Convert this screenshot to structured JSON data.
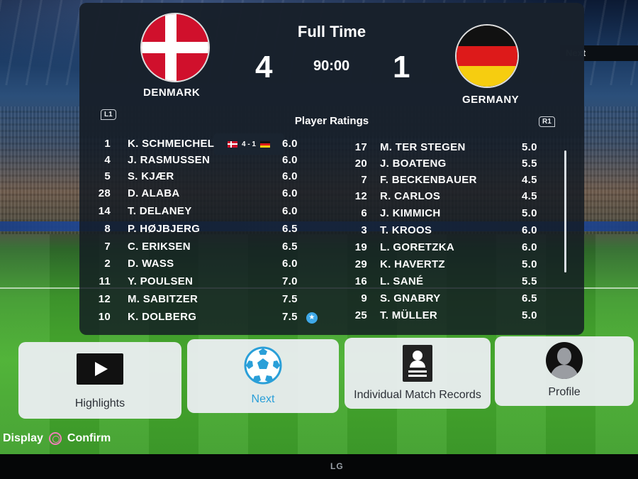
{
  "header": {
    "title": "Full Time",
    "clock": "90:00",
    "next_tag": "Next"
  },
  "home": {
    "team": "DENMARK",
    "score": "4"
  },
  "away": {
    "team": "GERMANY",
    "score": "1"
  },
  "mini_score": "4 - 1",
  "ratings": {
    "title": "Player Ratings",
    "l1": "L1",
    "r1": "R1",
    "home_players": [
      {
        "num": "1",
        "name": "K. SCHMEICHEL",
        "rating": "6.0"
      },
      {
        "num": "4",
        "name": "J. RASMUSSEN",
        "rating": "6.0"
      },
      {
        "num": "5",
        "name": "S. KJÆR",
        "rating": "6.0"
      },
      {
        "num": "28",
        "name": "D. ALABA",
        "rating": "6.0"
      },
      {
        "num": "14",
        "name": "T. DELANEY",
        "rating": "6.0"
      },
      {
        "num": "8",
        "name": "P. HØJBJERG",
        "rating": "6.5"
      },
      {
        "num": "7",
        "name": "C. ERIKSEN",
        "rating": "6.5"
      },
      {
        "num": "2",
        "name": "D. WASS",
        "rating": "6.0"
      },
      {
        "num": "11",
        "name": "Y. POULSEN",
        "rating": "7.0"
      },
      {
        "num": "12",
        "name": "M. SABITZER",
        "rating": "7.5"
      },
      {
        "num": "10",
        "name": "K. DOLBERG",
        "rating": "7.5"
      }
    ],
    "away_players": [
      {
        "num": "17",
        "name": "M. TER STEGEN",
        "rating": "5.0"
      },
      {
        "num": "20",
        "name": "J. BOATENG",
        "rating": "5.5"
      },
      {
        "num": "7",
        "name": "F. BECKENBAUER",
        "rating": "4.5"
      },
      {
        "num": "12",
        "name": "R. CARLOS",
        "rating": "4.5"
      },
      {
        "num": "6",
        "name": "J. KIMMICH",
        "rating": "5.0"
      },
      {
        "num": "3",
        "name": "T. KROOS",
        "rating": "6.0"
      },
      {
        "num": "19",
        "name": "L. GORETZKA",
        "rating": "6.0"
      },
      {
        "num": "29",
        "name": "K. HAVERTZ",
        "rating": "5.0"
      },
      {
        "num": "16",
        "name": "L. SANÉ",
        "rating": "5.5"
      },
      {
        "num": "9",
        "name": "S. GNABRY",
        "rating": "6.5"
      },
      {
        "num": "25",
        "name": "T. MÜLLER",
        "rating": "5.0"
      }
    ]
  },
  "actions": {
    "highlights": "Highlights",
    "next": "Next",
    "records": "Individual Match Records",
    "profile": "Profile"
  },
  "footer": {
    "display": "Display",
    "confirm": "Confirm"
  },
  "tv_brand": "LG",
  "colors": {
    "accent_next": "#2a9fd8",
    "star_badge": "#3fa9e8"
  },
  "icons": {
    "highlights": "play-icon",
    "next": "soccer-ball-icon",
    "records": "record-card-icon",
    "profile": "person-silhouette-icon",
    "confirm": "circle-button-icon",
    "star": "star-icon"
  }
}
